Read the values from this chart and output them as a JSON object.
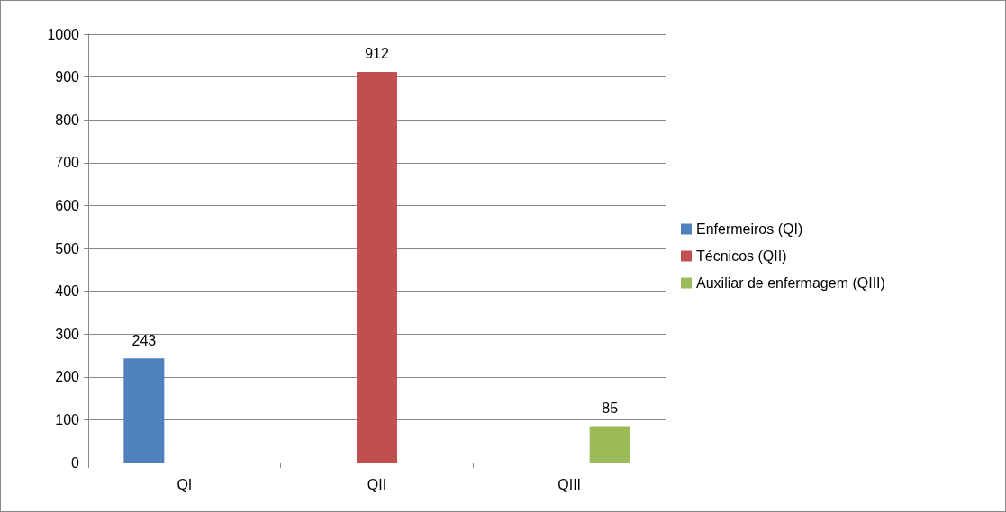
{
  "chart_data": {
    "type": "bar",
    "categories": [
      "QI",
      "QII",
      "QIII"
    ],
    "series": [
      {
        "name": "Enfermeiros (QI)",
        "color": "#4f81bd",
        "values": [
          243,
          null,
          null
        ]
      },
      {
        "name": "Técnicos (QII)",
        "color": "#c0504d",
        "values": [
          null,
          912,
          null
        ]
      },
      {
        "name": "Auxiliar de enfermagem (QIII)",
        "color": "#9bbb59",
        "values": [
          null,
          null,
          85
        ]
      }
    ],
    "ylim": [
      0,
      1000
    ],
    "yticks": [
      0,
      100,
      200,
      300,
      400,
      500,
      600,
      700,
      800,
      900,
      1000
    ],
    "grid": "y",
    "legend": "right",
    "data_labels": true
  }
}
